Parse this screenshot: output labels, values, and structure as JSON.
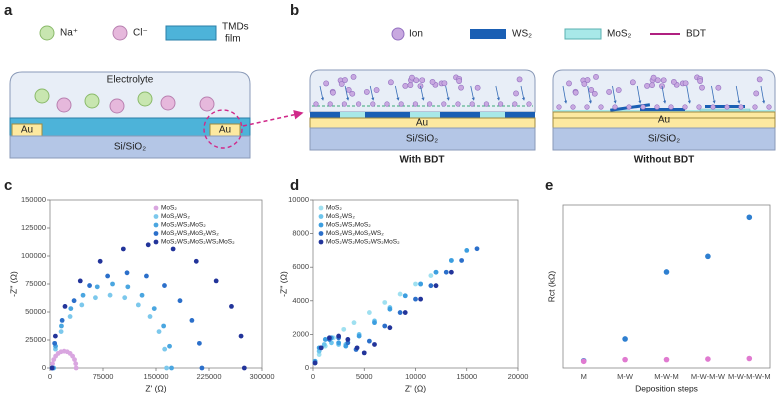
{
  "panel_labels": [
    "a",
    "b",
    "c",
    "d",
    "e"
  ],
  "diagram_a": {
    "legend": [
      "Na⁺",
      "Cl⁻"
    ],
    "film_label": [
      "TMDs",
      "film"
    ],
    "electrolyte": "Electrolyte",
    "electrode_left": "Au",
    "electrode_right": "Au",
    "substrate": "Si/SiO₂"
  },
  "diagram_b": {
    "legend": [
      "Ion",
      "WS₂",
      "MoS₂",
      "BDT"
    ],
    "with_bdt": {
      "electrode": "Au",
      "substrate": "Si/SiO₂",
      "caption": "With BDT"
    },
    "without_bdt": {
      "electrode": "Au",
      "substrate": "Si/SiO₂",
      "caption": "Without BDT"
    }
  },
  "chart_data": [
    {
      "type": "scatter",
      "xlabel": "Z' (Ω)",
      "ylabel": "-Z'' (Ω)",
      "legend": "upper right",
      "xlim": [
        0,
        300000
      ],
      "xticks": [
        0,
        75000,
        150000,
        225000,
        300000
      ],
      "ylim": [
        0,
        150000
      ],
      "yticks": [
        0,
        25000,
        50000,
        75000,
        100000,
        125000,
        150000
      ],
      "series": [
        {
          "name": "MoS₂",
          "color": "#d9a6e0",
          "x": [
            3000,
            3580,
            5280,
            7980,
            11500,
            15600,
            20000,
            24400,
            28500,
            32000,
            34700,
            36400,
            37000
          ],
          "values": [
            0,
            3890,
            7500,
            10600,
            13000,
            14500,
            15000,
            14500,
            13000,
            10600,
            7500,
            3890,
            0
          ]
        },
        {
          "name": "MoS₂WS₂",
          "color": "#7cc8ec",
          "x": [
            5000,
            7720,
            15720,
            28440,
            45000,
            64280,
            85000,
            105720,
            125000,
            141560,
            154280,
            162280,
            165000
          ],
          "values": [
            0,
            16840,
            32500,
            45960,
            56290,
            62790,
            65000,
            62790,
            56290,
            45960,
            32500,
            16840,
            0
          ]
        },
        {
          "name": "MoS₂WS₂MoS₂",
          "color": "#4aa6e0",
          "x": [
            5000,
            7840,
            16190,
            29460,
            46750,
            66870,
            88500,
            110130,
            130250,
            147540,
            160810,
            169160,
            172000
          ],
          "values": [
            0,
            19430,
            37500,
            53030,
            64950,
            72450,
            75000,
            72450,
            64950,
            53030,
            37500,
            19430,
            0
          ]
        },
        {
          "name": "MoS₂WS₂MoS₂WS₂",
          "color": "#2b6fca",
          "x": [
            3000,
            6600,
            17200,
            34060,
            56000,
            81550,
            109000,
            136450,
            162000,
            183940,
            200800,
            211400,
            215000
          ],
          "values": [
            0,
            22020,
            42500,
            60100,
            73610,
            82110,
            85000,
            82110,
            73610,
            60100,
            42500,
            22020,
            0
          ]
        },
        {
          "name": "MoS₂WS₂MoS₂WS₂MoS₂",
          "color": "#22349a",
          "x": [
            3000,
            7620,
            21220,
            42850,
            71000,
            103780,
            139000,
            174220,
            207000,
            235150,
            256780,
            270380,
            275000
          ],
          "values": [
            0,
            28490,
            55000,
            77770,
            95260,
            106260,
            110000,
            106260,
            95260,
            77770,
            55000,
            28490,
            0
          ]
        }
      ]
    },
    {
      "type": "scatter",
      "xlabel": "Z' (Ω)",
      "ylabel": "-Z'' (Ω)",
      "legend": "upper left",
      "xlim": [
        0,
        20000
      ],
      "xticks": [
        0,
        5000,
        10000,
        15000,
        20000
      ],
      "ylim": [
        0,
        10000
      ],
      "yticks": [
        0,
        2000,
        4000,
        6000,
        8000,
        10000
      ],
      "series": [
        {
          "name": "MoS₂",
          "color": "#9fe0f0",
          "x": [
            200,
            600,
            1200,
            2000,
            3000,
            4000,
            5500,
            7000,
            8500,
            10000,
            11500
          ],
          "values": [
            300,
            800,
            1300,
            1800,
            2300,
            2700,
            3300,
            3900,
            4400,
            5000,
            5500
          ]
        },
        {
          "name": "MoS₂WS₂",
          "color": "#6cc4ec",
          "x": [
            200,
            600,
            1100,
            1800,
            2500,
            3200,
            4500,
            6000,
            7500,
            9000,
            10500,
            12000,
            13500
          ],
          "values": [
            400,
            1000,
            1400,
            1500,
            1400,
            1400,
            2000,
            2800,
            3600,
            4300,
            5000,
            5700,
            6400
          ]
        },
        {
          "name": "MoS₂WS₂MoS₂",
          "color": "#3c9ee0",
          "x": [
            200,
            600,
            1200,
            1800,
            2500,
            3200,
            4500,
            6000,
            7500,
            9000,
            10500,
            12000,
            13500,
            15000
          ],
          "values": [
            400,
            1200,
            1700,
            1800,
            1500,
            1300,
            1900,
            2700,
            3500,
            4300,
            5000,
            5700,
            6400,
            7000
          ]
        },
        {
          "name": "MoS₂WS₂MoS₂WS₂",
          "color": "#2b6fca",
          "x": [
            200,
            800,
            1600,
            2500,
            3400,
            4200,
            5500,
            7000,
            8500,
            10000,
            11500,
            13000,
            14500,
            16000
          ],
          "values": [
            300,
            1200,
            1700,
            1800,
            1500,
            1100,
            1600,
            2500,
            3300,
            4100,
            4900,
            5700,
            6400,
            7100
          ]
        },
        {
          "name": "MoS₂WS₂MoS₂WS₂MoS₂",
          "color": "#22349a",
          "x": [
            200,
            800,
            1600,
            2500,
            3400,
            4300,
            5000,
            6000,
            7500,
            9000,
            10500,
            12000,
            13500
          ],
          "values": [
            300,
            1200,
            1800,
            1900,
            1700,
            1200,
            900,
            1400,
            2400,
            3300,
            4100,
            4900,
            5700
          ]
        }
      ]
    },
    {
      "type": "dot",
      "xlabel": "Deposition steps",
      "ylabel": "Rct (kΩ)",
      "categories": [
        "M",
        "M-W",
        "M-W-M",
        "M-W-M-W",
        "M-W-M-W-M"
      ],
      "ylim": [
        -12,
        280
      ],
      "series": [
        {
          "color": "#2e7fd0",
          "values": [
            1,
            40,
            160,
            188,
            258
          ]
        },
        {
          "color": "#e07ad0",
          "values": [
            0,
            3,
            3,
            4,
            5
          ]
        }
      ]
    }
  ]
}
